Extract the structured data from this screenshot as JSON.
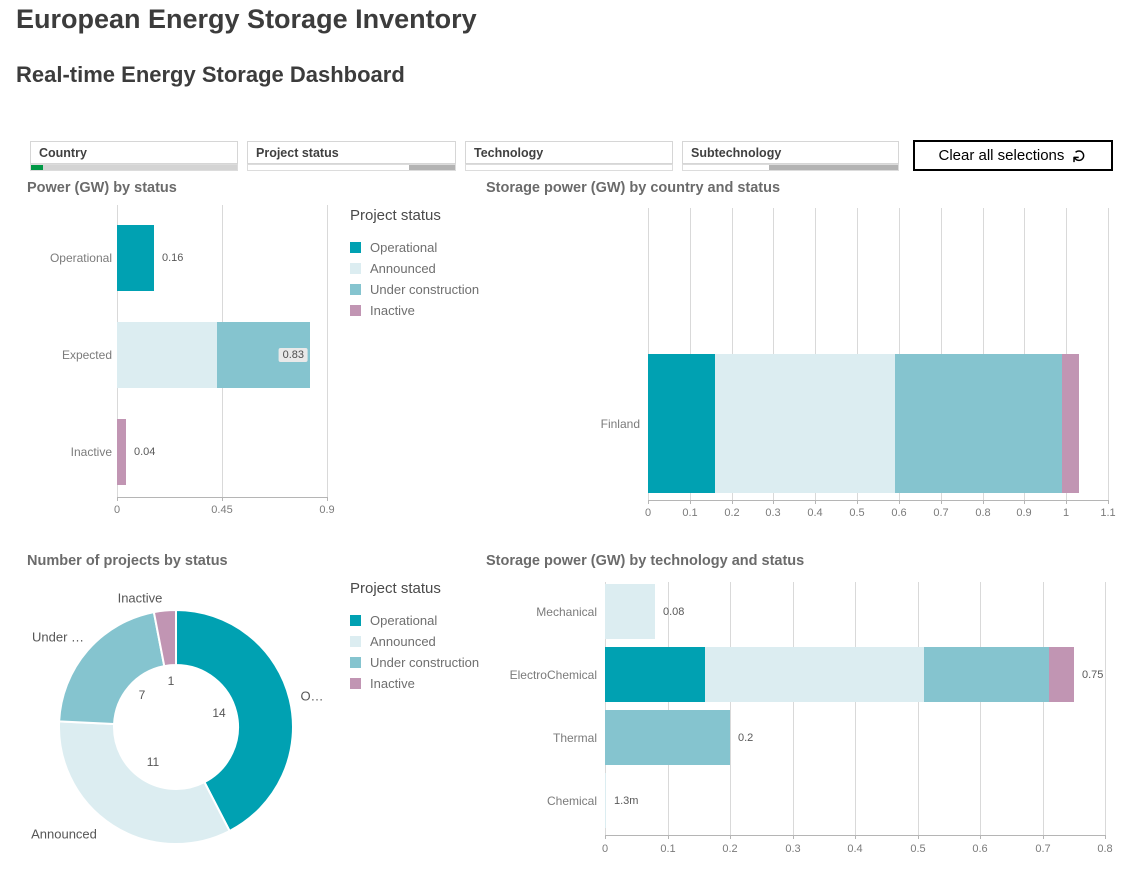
{
  "header": {
    "title": "European Energy Storage Inventory",
    "subtitle": "Real-time Energy Storage Dashboard"
  },
  "palette": {
    "operational": "#00a1b2",
    "announced": "#dcedf1",
    "under_construction": "#85c4cf",
    "inactive": "#c195b3",
    "states": {
      "selected": "#009845",
      "alternative": "#d4d4d4",
      "possible": "#ffffff",
      "excluded": "#b3b3b3"
    }
  },
  "filters": {
    "items": [
      {
        "label": "Country",
        "selection_bar": [
          {
            "kind": "selected",
            "pct": 6
          },
          {
            "kind": "alternative",
            "pct": 94
          }
        ]
      },
      {
        "label": "Project status",
        "selection_bar": [
          {
            "kind": "possible",
            "pct": 78
          },
          {
            "kind": "excluded",
            "pct": 22
          }
        ]
      },
      {
        "label": "Technology",
        "selection_bar": [
          {
            "kind": "possible",
            "pct": 100
          }
        ]
      },
      {
        "label": "Subtechnology",
        "selection_bar": [
          {
            "kind": "possible",
            "pct": 40
          },
          {
            "kind": "excluded",
            "pct": 60
          }
        ]
      }
    ],
    "clear_button_label": "Clear all selections",
    "clear_button_icon": "clear-selections-icon"
  },
  "legend": {
    "title": "Project status",
    "items": [
      {
        "label": "Operational",
        "color_key": "operational"
      },
      {
        "label": "Announced",
        "color_key": "announced"
      },
      {
        "label": "Under construction",
        "color_key": "under_construction"
      },
      {
        "label": "Inactive",
        "color_key": "inactive"
      }
    ]
  },
  "chart_data": [
    {
      "id": "power-by-status",
      "type": "bar",
      "orientation": "horizontal",
      "stacked": true,
      "title": "Power (GW) by status",
      "categories": [
        "Operational",
        "Expected",
        "Inactive"
      ],
      "bars": [
        {
          "segments": [
            {
              "status": "operational",
              "value": 0.16
            }
          ],
          "total": 0.16,
          "label": "0.16",
          "label_style": "outside"
        },
        {
          "segments": [
            {
              "status": "announced",
              "value": 0.43
            },
            {
              "status": "under_construction",
              "value": 0.4
            }
          ],
          "total": 0.83,
          "label": "0.83",
          "label_style": "badge"
        },
        {
          "segments": [
            {
              "status": "inactive",
              "value": 0.04
            }
          ],
          "total": 0.04,
          "label": "0.04",
          "label_style": "outside"
        }
      ],
      "xlim": [
        0,
        0.9
      ],
      "xticks": [
        0,
        0.45,
        0.9
      ],
      "xtick_labels": [
        "0",
        "0.45",
        "0.9"
      ],
      "legend_position": "right",
      "grid": true
    },
    {
      "id": "storage-by-country",
      "type": "bar",
      "orientation": "horizontal",
      "stacked": true,
      "title": "Storage power (GW) by country and status",
      "categories": [
        "Finland"
      ],
      "bars": [
        {
          "segments": [
            {
              "status": "operational",
              "value": 0.16
            },
            {
              "status": "announced",
              "value": 0.43
            },
            {
              "status": "under_construction",
              "value": 0.4
            },
            {
              "status": "inactive",
              "value": 0.04
            }
          ],
          "total": 1.03,
          "label": "",
          "label_style": "none"
        }
      ],
      "xlim": [
        0,
        1.1
      ],
      "xticks": [
        0,
        0.1,
        0.2,
        0.3,
        0.4,
        0.5,
        0.6,
        0.7,
        0.8,
        0.9,
        1,
        1.1
      ],
      "xtick_labels": [
        "0",
        "0.1",
        "0.2",
        "0.3",
        "0.4",
        "0.5",
        "0.6",
        "0.7",
        "0.8",
        "0.9",
        "1",
        "1.1"
      ],
      "legend_position": "none",
      "grid": true
    },
    {
      "id": "projects-by-status",
      "type": "pie",
      "donut": true,
      "title": "Number of projects by status",
      "slices": [
        {
          "label": "Operational",
          "display_label": "O…",
          "value": 14,
          "color_key": "operational"
        },
        {
          "label": "Announced",
          "display_label": "Announced",
          "value": 11,
          "color_key": "announced"
        },
        {
          "label": "Under construction",
          "display_label": "Under …",
          "value": 7,
          "color_key": "under_construction"
        },
        {
          "label": "Inactive",
          "display_label": "Inactive",
          "value": 1,
          "color_key": "inactive"
        }
      ],
      "total": 33,
      "legend_position": "right"
    },
    {
      "id": "storage-by-technology",
      "type": "bar",
      "orientation": "horizontal",
      "stacked": true,
      "title": "Storage power (GW) by technology and status",
      "categories": [
        "Mechanical",
        "ElectroChemical",
        "Thermal",
        "Chemical"
      ],
      "bars": [
        {
          "segments": [
            {
              "status": "announced",
              "value": 0.08
            }
          ],
          "total": 0.08,
          "label": "0.08",
          "label_style": "outside"
        },
        {
          "segments": [
            {
              "status": "operational",
              "value": 0.16
            },
            {
              "status": "announced",
              "value": 0.35
            },
            {
              "status": "under_construction",
              "value": 0.2
            },
            {
              "status": "inactive",
              "value": 0.04
            }
          ],
          "total": 0.75,
          "label": "0.75",
          "label_style": "outside"
        },
        {
          "segments": [
            {
              "status": "under_construction",
              "value": 0.2
            }
          ],
          "total": 0.2,
          "label": "0.2",
          "label_style": "outside"
        },
        {
          "segments": [
            {
              "status": "announced",
              "value": 0.0013
            }
          ],
          "total": 0.0013,
          "label": "1.3m",
          "label_style": "outside"
        }
      ],
      "xlim": [
        0,
        0.8
      ],
      "xticks": [
        0,
        0.1,
        0.2,
        0.3,
        0.4,
        0.5,
        0.6,
        0.7,
        0.8
      ],
      "xtick_labels": [
        "0",
        "0.1",
        "0.2",
        "0.3",
        "0.4",
        "0.5",
        "0.6",
        "0.7",
        "0.8"
      ],
      "legend_position": "none",
      "grid": true
    }
  ]
}
